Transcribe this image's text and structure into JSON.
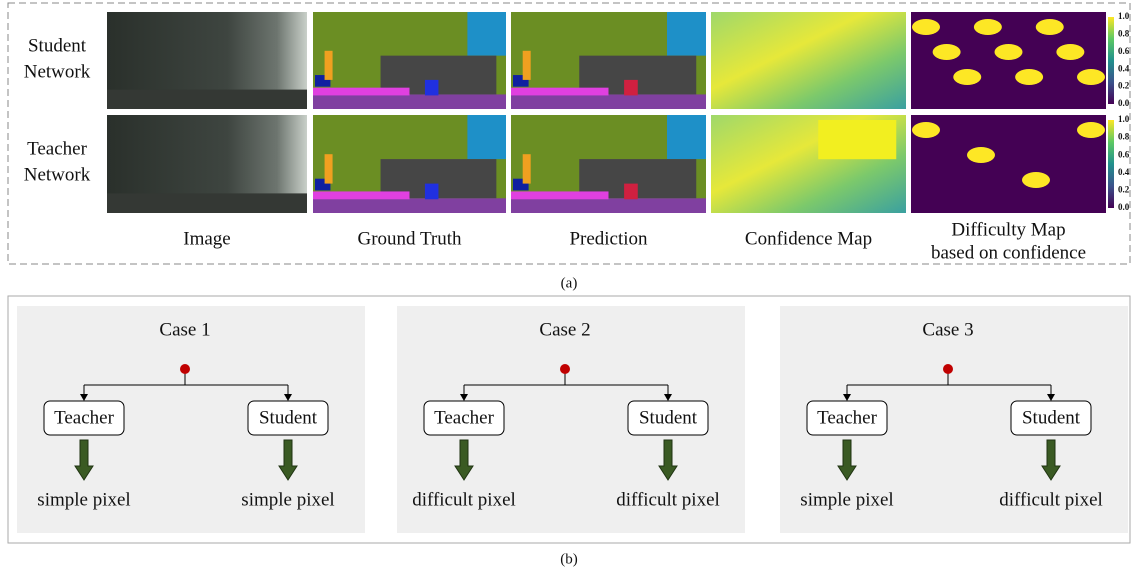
{
  "panel_a": {
    "row_labels": [
      [
        "Student",
        "Network"
      ],
      [
        "Teacher",
        "Network"
      ]
    ],
    "column_labels": [
      [
        "Image"
      ],
      [
        "Ground Truth"
      ],
      [
        "Prediction"
      ],
      [
        "Confidence Map"
      ],
      [
        "Difficulty Map",
        "based on confidence"
      ]
    ],
    "colorbars": [
      {
        "ticks": [
          "1.0",
          "0.8",
          "0.6",
          "0.4",
          "0.2",
          "0.0"
        ]
      },
      {
        "ticks": [
          "1.0",
          "0.8",
          "0.6",
          "0.4",
          "0.2",
          "0.0"
        ]
      }
    ],
    "caption": "(a)"
  },
  "panel_b": {
    "cases": [
      {
        "title": "Case 1",
        "teacher": "Teacher",
        "student": "Student",
        "teacher_result": "simple pixel",
        "student_result": "simple pixel"
      },
      {
        "title": "Case 2",
        "teacher": "Teacher",
        "student": "Student",
        "teacher_result": "difficult pixel",
        "student_result": "difficult pixel"
      },
      {
        "title": "Case 3",
        "teacher": "Teacher",
        "student": "Student",
        "teacher_result": "simple pixel",
        "student_result": "difficult pixel"
      }
    ],
    "caption": "(b)"
  }
}
